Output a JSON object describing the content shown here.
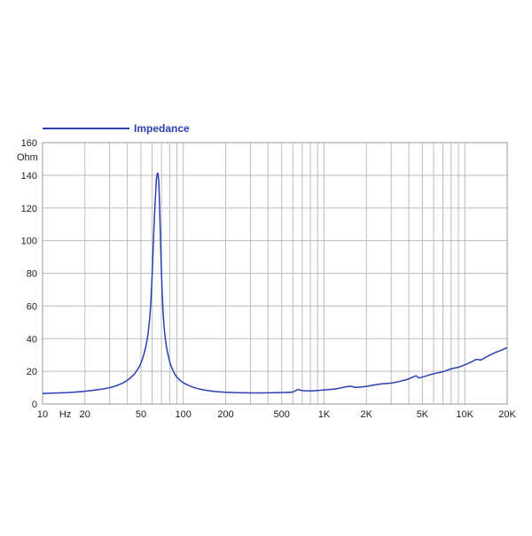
{
  "chart_data": {
    "type": "line",
    "title": "",
    "xlabel": "Hz",
    "ylabel": "Ohm",
    "x_scale": "log",
    "xlim": [
      10,
      20000
    ],
    "ylim": [
      0,
      160
    ],
    "grid": true,
    "legend_position": "top-left",
    "x_tick_values": [
      10,
      20,
      50,
      100,
      200,
      500,
      1000,
      2000,
      5000,
      10000,
      20000
    ],
    "x_tick_labels": [
      "10",
      "20",
      "50",
      "100",
      "200",
      "500",
      "1K",
      "2K",
      "5K",
      "10K",
      "20K"
    ],
    "y_ticks": [
      0,
      20,
      40,
      60,
      80,
      100,
      120,
      140,
      160
    ],
    "series": [
      {
        "name": "Impedance",
        "color": "#2b3fb0",
        "x": [
          10,
          15,
          20,
          25,
          30,
          35,
          40,
          45,
          50,
          55,
          58,
          60,
          62,
          64,
          65,
          66,
          67,
          68,
          70,
          72,
          75,
          80,
          85,
          90,
          100,
          120,
          150,
          200,
          300,
          500,
          600,
          650,
          700,
          800,
          900,
          1000,
          1200,
          1500,
          1700,
          2000,
          2500,
          3000,
          3500,
          4000,
          4500,
          4700,
          5000,
          6000,
          7000,
          8000,
          9000,
          10000,
          11000,
          12000,
          13000,
          14000,
          16000,
          18000,
          20000
        ],
        "y": [
          6.5,
          7,
          7.8,
          8.8,
          10,
          11.8,
          14.5,
          18.5,
          25,
          38,
          55,
          78,
          110,
          134,
          140,
          141,
          135,
          118,
          80,
          55,
          38,
          26,
          20,
          16.5,
          13,
          10,
          8.2,
          7.2,
          6.8,
          7,
          7.4,
          8.8,
          8.2,
          8,
          8.3,
          8.6,
          9.2,
          10.8,
          10.2,
          10.8,
          12.2,
          12.8,
          14,
          15.4,
          17.2,
          16,
          16.5,
          18.5,
          19.8,
          21.5,
          22.5,
          24,
          25.5,
          27.2,
          27,
          28.5,
          31,
          32.8,
          34.5
        ]
      }
    ]
  }
}
